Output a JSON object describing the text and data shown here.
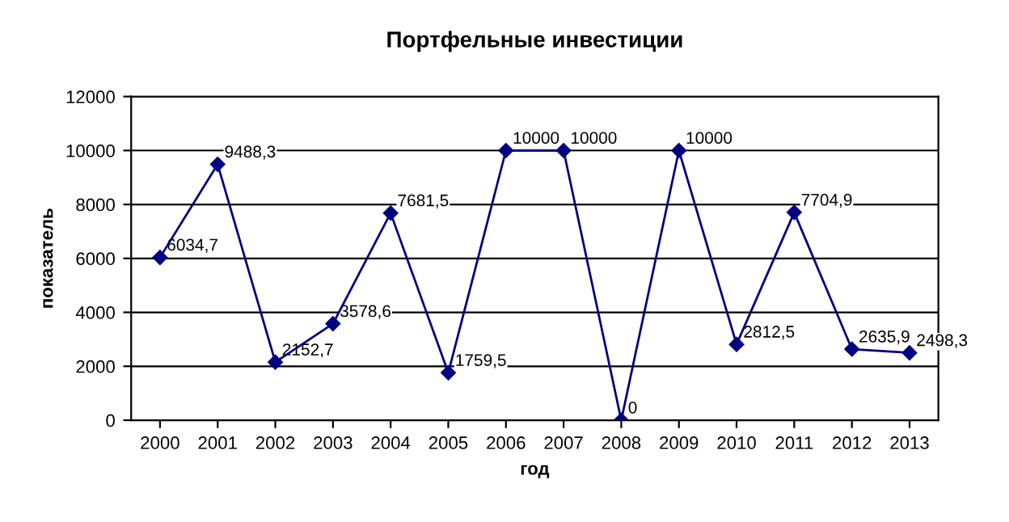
{
  "chart_data": {
    "type": "line",
    "title": "Портфельные инвестиции",
    "xlabel": "год",
    "ylabel": "показатель",
    "categories": [
      "2000",
      "2001",
      "2002",
      "2003",
      "2004",
      "2005",
      "2006",
      "2007",
      "2008",
      "2009",
      "2010",
      "2011",
      "2012",
      "2013"
    ],
    "series": [
      {
        "color": "#000080",
        "values": [
          6034.7,
          9488.3,
          2152.7,
          3578.6,
          7681.5,
          1759.5,
          10000,
          10000,
          0,
          10000,
          2812.5,
          7704.9,
          2635.9,
          2498.3
        ],
        "value_labels": [
          "6034,7",
          "9488,3",
          "2152,7",
          "3578,6",
          "7681,5",
          "1759,5",
          "10000",
          "10000",
          "0",
          "10000",
          "2812,5",
          "7704,9",
          "2635,9",
          "2498,3"
        ]
      }
    ],
    "ylim": [
      0,
      12000
    ],
    "yticks": [
      0,
      2000,
      4000,
      6000,
      8000,
      10000,
      12000
    ],
    "grid": "y",
    "legend": false,
    "marker": "diamond",
    "line_style": "solid"
  }
}
